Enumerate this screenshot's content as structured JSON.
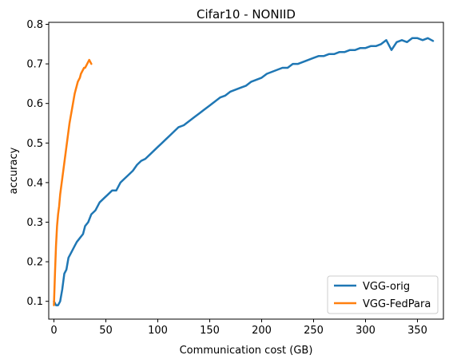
{
  "chart_data": {
    "type": "line",
    "title": "Cifar10 - NONIID",
    "xlabel": "Communication cost (GB)",
    "ylabel": "accuracy",
    "xlim": [
      -5,
      375
    ],
    "ylim": [
      0.055,
      0.805
    ],
    "xticks": [
      0,
      50,
      100,
      150,
      200,
      250,
      300,
      350
    ],
    "yticks": [
      0.1,
      0.2,
      0.3,
      0.4,
      0.5,
      0.6,
      0.7,
      0.8
    ],
    "legend_position": "lower-right",
    "grid": false,
    "series": [
      {
        "name": "VGG-orig",
        "color": "#1f77b4",
        "x": [
          0,
          2,
          4,
          6,
          8,
          10,
          12,
          14,
          16,
          18,
          20,
          22,
          25,
          28,
          30,
          33,
          36,
          40,
          44,
          48,
          52,
          56,
          60,
          64,
          68,
          72,
          76,
          80,
          84,
          88,
          92,
          96,
          100,
          104,
          108,
          112,
          116,
          120,
          125,
          130,
          135,
          140,
          145,
          150,
          155,
          160,
          165,
          170,
          175,
          180,
          185,
          190,
          195,
          200,
          205,
          210,
          215,
          220,
          225,
          230,
          235,
          240,
          245,
          250,
          255,
          260,
          265,
          270,
          275,
          280,
          285,
          290,
          295,
          300,
          305,
          310,
          315,
          320,
          325,
          330,
          335,
          340,
          345,
          350,
          355,
          360,
          365
        ],
        "y": [
          0.1,
          0.09,
          0.09,
          0.1,
          0.13,
          0.17,
          0.18,
          0.21,
          0.22,
          0.23,
          0.24,
          0.25,
          0.26,
          0.27,
          0.29,
          0.3,
          0.32,
          0.33,
          0.35,
          0.36,
          0.37,
          0.38,
          0.38,
          0.4,
          0.41,
          0.42,
          0.43,
          0.445,
          0.455,
          0.46,
          0.47,
          0.48,
          0.49,
          0.5,
          0.51,
          0.52,
          0.53,
          0.54,
          0.545,
          0.555,
          0.565,
          0.575,
          0.585,
          0.595,
          0.605,
          0.615,
          0.62,
          0.63,
          0.635,
          0.64,
          0.645,
          0.655,
          0.66,
          0.665,
          0.675,
          0.68,
          0.685,
          0.69,
          0.69,
          0.7,
          0.7,
          0.705,
          0.71,
          0.715,
          0.72,
          0.72,
          0.725,
          0.725,
          0.73,
          0.73,
          0.735,
          0.735,
          0.74,
          0.74,
          0.745,
          0.745,
          0.75,
          0.76,
          0.735,
          0.755,
          0.76,
          0.755,
          0.765,
          0.765,
          0.76,
          0.765,
          0.758
        ]
      },
      {
        "name": "VGG-FedPara",
        "color": "#ff7f0e",
        "x": [
          0,
          1,
          2,
          3,
          4,
          5,
          6,
          7,
          8,
          9,
          10,
          11,
          12,
          13,
          14,
          15,
          16,
          17,
          18,
          19,
          20,
          21,
          22,
          23,
          24,
          25,
          26,
          27,
          28,
          29,
          30,
          31,
          32,
          33,
          34,
          35,
          36
        ],
        "y": [
          0.09,
          0.17,
          0.24,
          0.29,
          0.32,
          0.34,
          0.37,
          0.39,
          0.41,
          0.43,
          0.45,
          0.47,
          0.49,
          0.51,
          0.53,
          0.55,
          0.565,
          0.58,
          0.595,
          0.61,
          0.625,
          0.635,
          0.645,
          0.655,
          0.66,
          0.665,
          0.675,
          0.68,
          0.685,
          0.69,
          0.69,
          0.695,
          0.7,
          0.705,
          0.71,
          0.705,
          0.7
        ]
      }
    ]
  }
}
